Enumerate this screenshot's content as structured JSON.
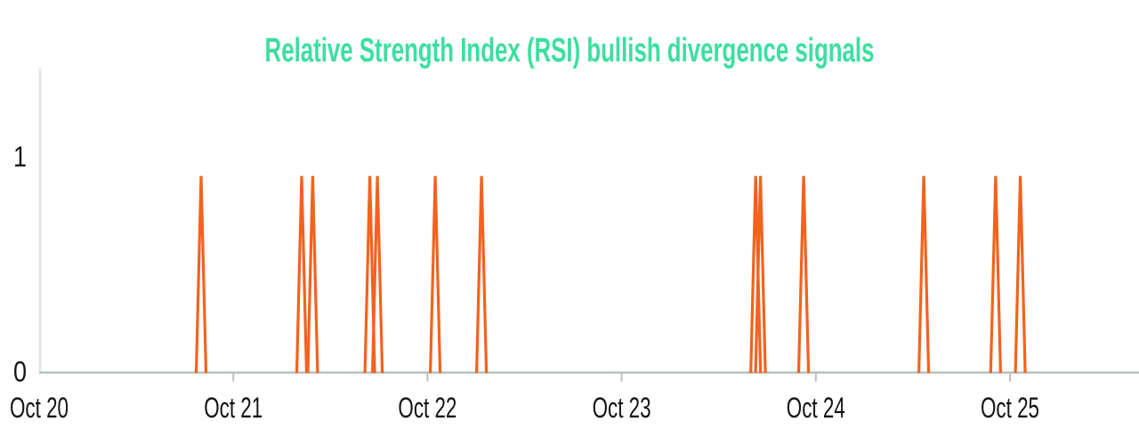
{
  "chart_data": {
    "type": "line",
    "title": "Relative Strength Index (RSI) bullish divergence signals",
    "title_color": "#3cdfa0",
    "xlabel": "",
    "ylabel": "",
    "grid": false,
    "legend": false,
    "x_axis": {
      "ticks": [
        {
          "label": "Oct 20",
          "day": 0
        },
        {
          "label": "Oct 21",
          "day": 1
        },
        {
          "label": "Oct 22",
          "day": 2
        },
        {
          "label": "Oct 23",
          "day": 3
        },
        {
          "label": "Oct 24",
          "day": 4
        },
        {
          "label": "Oct 25",
          "day": 5
        }
      ]
    },
    "y_axis": {
      "ticks": [
        {
          "label": "0",
          "value": 0
        },
        {
          "label": "1",
          "value": 1
        }
      ],
      "ylim": [
        0,
        1.4
      ]
    },
    "series": [
      {
        "name": "RSI bullish divergence signal",
        "color": "#f4621d",
        "baseline_value": 0,
        "spike_peak_value": 0.91,
        "spike_half_width_days": 0.025,
        "spikes": [
          {
            "day_offset": 0.834,
            "approx_time": "Oct 20 ~20:00"
          },
          {
            "day_offset": 1.352,
            "approx_time": "Oct 21 ~08:30"
          },
          {
            "day_offset": 1.409,
            "approx_time": "Oct 21 ~09:50"
          },
          {
            "day_offset": 1.703,
            "approx_time": "Oct 21 ~16:50"
          },
          {
            "day_offset": 1.742,
            "approx_time": "Oct 21 ~17:50"
          },
          {
            "day_offset": 2.04,
            "approx_time": "Oct 22 ~01:00"
          },
          {
            "day_offset": 2.278,
            "approx_time": "Oct 22 ~06:40"
          },
          {
            "day_offset": 3.69,
            "approx_time": "Oct 23 ~16:30"
          },
          {
            "day_offset": 3.715,
            "approx_time": "Oct 23 ~17:10"
          },
          {
            "day_offset": 3.937,
            "approx_time": "Oct 23 ~22:30"
          },
          {
            "day_offset": 4.556,
            "approx_time": "Oct 24 ~13:20"
          },
          {
            "day_offset": 4.926,
            "approx_time": "Oct 24 ~22:15"
          },
          {
            "day_offset": 5.053,
            "approx_time": "Oct 25 ~01:15"
          }
        ]
      }
    ],
    "axis_colors": {
      "baseline": "#b7c1c1",
      "y_axis_line": "#dde3e3",
      "tick": "#b7c1c1",
      "label_text": "#141414"
    }
  }
}
